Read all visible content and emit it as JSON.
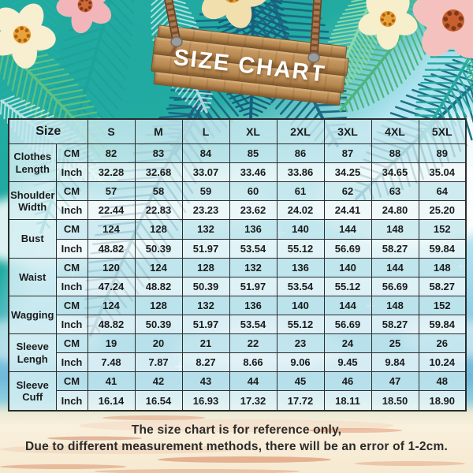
{
  "sign": {
    "title": "SIZE CHART"
  },
  "chart_data": {
    "type": "table",
    "title": "SIZE CHART",
    "columns": [
      "Size",
      "S",
      "M",
      "L",
      "XL",
      "2XL",
      "3XL",
      "4XL",
      "5XL"
    ],
    "unit_labels": [
      "CM",
      "Inch"
    ],
    "rows": [
      {
        "label": "Clothes Length",
        "cm": [
          "82",
          "83",
          "84",
          "85",
          "86",
          "87",
          "88",
          "89"
        ],
        "inch": [
          "32.28",
          "32.68",
          "33.07",
          "33.46",
          "33.86",
          "34.25",
          "34.65",
          "35.04"
        ]
      },
      {
        "label": "Shoulder Width",
        "cm": [
          "57",
          "58",
          "59",
          "60",
          "61",
          "62",
          "63",
          "64"
        ],
        "inch": [
          "22.44",
          "22.83",
          "23.23",
          "23.62",
          "24.02",
          "24.41",
          "24.80",
          "25.20"
        ]
      },
      {
        "label": "Bust",
        "cm": [
          "124",
          "128",
          "132",
          "136",
          "140",
          "144",
          "148",
          "152"
        ],
        "inch": [
          "48.82",
          "50.39",
          "51.97",
          "53.54",
          "55.12",
          "56.69",
          "58.27",
          "59.84"
        ]
      },
      {
        "label": "Waist",
        "cm": [
          "120",
          "124",
          "128",
          "132",
          "136",
          "140",
          "144",
          "148"
        ],
        "inch": [
          "47.24",
          "48.82",
          "50.39",
          "51.97",
          "53.54",
          "55.12",
          "56.69",
          "58.27"
        ]
      },
      {
        "label": "Wagging",
        "cm": [
          "124",
          "128",
          "132",
          "136",
          "140",
          "144",
          "148",
          "152"
        ],
        "inch": [
          "48.82",
          "50.39",
          "51.97",
          "53.54",
          "55.12",
          "56.69",
          "58.27",
          "59.84"
        ]
      },
      {
        "label": "Sleeve Lengh",
        "cm": [
          "19",
          "20",
          "21",
          "22",
          "23",
          "24",
          "25",
          "26"
        ],
        "inch": [
          "7.48",
          "7.87",
          "8.27",
          "8.66",
          "9.06",
          "9.45",
          "9.84",
          "10.24"
        ]
      },
      {
        "label": "Sleeve Cuff",
        "cm": [
          "41",
          "42",
          "43",
          "44",
          "45",
          "46",
          "47",
          "48"
        ],
        "inch": [
          "16.14",
          "16.54",
          "16.93",
          "17.32",
          "17.72",
          "18.11",
          "18.50",
          "18.90"
        ]
      }
    ]
  },
  "footnote": {
    "line1": "The size chart is for reference only,",
    "line2": "Due to different measurement methods, there will be an error of 1-2cm."
  },
  "colors": {
    "teal_background": "#21aba1",
    "sky": "#b2e5f1",
    "sand": "#f6e9d0",
    "wood": "#b98a53",
    "table_border": "#2c2c2c",
    "cm_row": "#c5e7ed",
    "inch_row": "#edf7f9",
    "text": "#1b1b1b"
  }
}
